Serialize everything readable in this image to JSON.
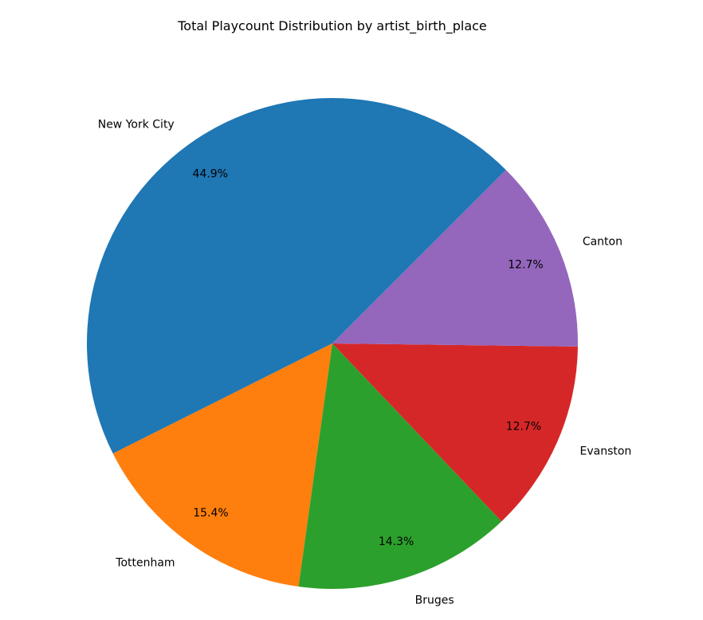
{
  "chart_data": {
    "type": "pie",
    "title": "Total Playcount Distribution by artist_birth_place",
    "categories": [
      "New York City",
      "Tottenham",
      "Bruges",
      "Evanston",
      "Canton"
    ],
    "values": [
      44.9,
      15.4,
      14.3,
      12.7,
      12.7
    ],
    "percent_labels": [
      "44.9%",
      "15.4%",
      "14.3%",
      "12.7%",
      "12.7%"
    ],
    "colors": [
      "#1f77b4",
      "#ff7f0e",
      "#2ca02c",
      "#d62728",
      "#9467bd"
    ],
    "start_angle_deg": 45,
    "direction": "counterclockwise"
  }
}
